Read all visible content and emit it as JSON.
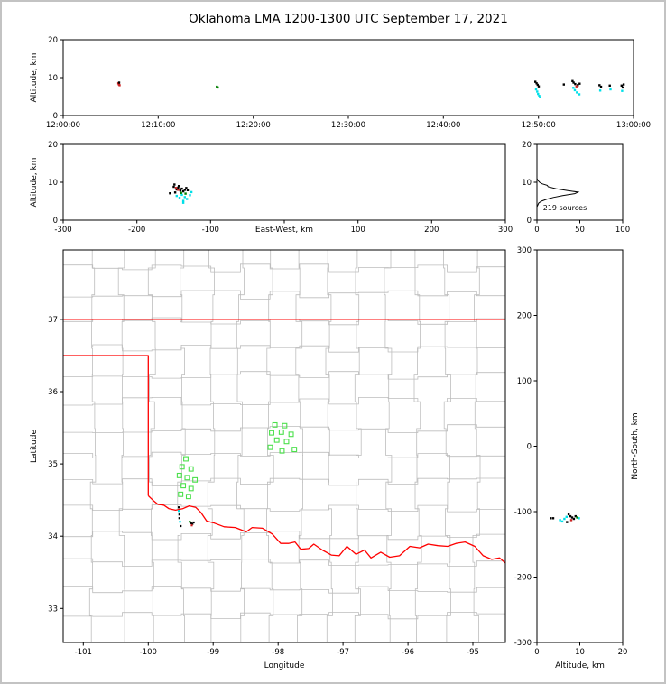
{
  "figure": {
    "title": "Oklahoma LMA 1200-1300 UTC September 17, 2021",
    "background": "#ffffff",
    "frame_color": "#c3c3c3"
  },
  "colors": {
    "axis": "#000000",
    "county_line": "#bdbdbd",
    "state_border": "#ff0000",
    "station_marker": "#4be04b",
    "k": "#000000",
    "c": "#00dfe8",
    "r": "#cc2222",
    "g": "#007f00"
  },
  "chart_data": [
    {
      "id": "time_height",
      "type": "scatter",
      "title": "",
      "xlabel": "",
      "ylabel": "Altitude, km",
      "xlim": [
        0,
        3600
      ],
      "ylim": [
        0,
        20
      ],
      "grid": false,
      "xticks": [
        {
          "v": 0,
          "label": "12:00:00"
        },
        {
          "v": 600,
          "label": "12:10:00"
        },
        {
          "v": 1200,
          "label": "12:20:00"
        },
        {
          "v": 1800,
          "label": "12:30:00"
        },
        {
          "v": 2400,
          "label": "12:40:00"
        },
        {
          "v": 3000,
          "label": "12:50:00"
        },
        {
          "v": 3600,
          "label": "13:00:00"
        }
      ],
      "yticks": [
        0,
        10,
        20
      ],
      "points": [
        [
          348,
          8.5,
          "r"
        ],
        [
          352,
          8.2,
          "r"
        ],
        [
          353,
          8.7,
          "k"
        ],
        [
          356,
          8.0,
          "r"
        ],
        [
          970,
          7.6,
          "g"
        ],
        [
          976,
          7.4,
          "g"
        ],
        [
          2980,
          8.9,
          "k"
        ],
        [
          2988,
          8.5,
          "k"
        ],
        [
          2995,
          8.1,
          "k"
        ],
        [
          3002,
          7.7,
          "k"
        ],
        [
          2985,
          6.9,
          "c"
        ],
        [
          2992,
          6.3,
          "c"
        ],
        [
          2998,
          5.7,
          "c"
        ],
        [
          3005,
          5.2,
          "c"
        ],
        [
          3010,
          4.8,
          "c"
        ],
        [
          3160,
          8.2,
          "k"
        ],
        [
          3215,
          9.1,
          "k"
        ],
        [
          3222,
          8.7,
          "k"
        ],
        [
          3232,
          8.3,
          "k"
        ],
        [
          3248,
          8.0,
          "k"
        ],
        [
          3260,
          8.4,
          "k"
        ],
        [
          3220,
          7.3,
          "c"
        ],
        [
          3230,
          6.7,
          "c"
        ],
        [
          3243,
          6.1,
          "c"
        ],
        [
          3258,
          5.6,
          "c"
        ],
        [
          3240,
          7.7,
          "r"
        ],
        [
          3385,
          8.0,
          "k"
        ],
        [
          3395,
          7.6,
          "k"
        ],
        [
          3390,
          6.6,
          "c"
        ],
        [
          3450,
          7.9,
          "k"
        ],
        [
          3455,
          6.9,
          "c"
        ],
        [
          3525,
          7.9,
          "k"
        ],
        [
          3532,
          7.4,
          "k"
        ],
        [
          3528,
          6.5,
          "c"
        ],
        [
          3538,
          8.2,
          "k"
        ]
      ]
    },
    {
      "id": "ew_height",
      "type": "scatter",
      "title": "",
      "xlabel": "East-West, km",
      "ylabel": "Altitude, km",
      "xlim": [
        -300,
        300
      ],
      "ylim": [
        0,
        20
      ],
      "grid": false,
      "xticks": [
        -300,
        -200,
        -100,
        0,
        100,
        200,
        300
      ],
      "yticks": [
        0,
        10,
        20
      ],
      "points": [
        [
          -155,
          7.1,
          "k"
        ],
        [
          -150,
          8.8,
          "k"
        ],
        [
          -149,
          9.4,
          "k"
        ],
        [
          -148,
          7.3,
          "k"
        ],
        [
          -146,
          8.1,
          "k"
        ],
        [
          -144,
          8.6,
          "k"
        ],
        [
          -143,
          9.0,
          "k"
        ],
        [
          -141,
          7.8,
          "k"
        ],
        [
          -139,
          8.3,
          "k"
        ],
        [
          -137,
          7.6,
          "k"
        ],
        [
          -135,
          8.0,
          "k"
        ],
        [
          -133,
          8.5,
          "k"
        ],
        [
          -131,
          7.9,
          "k"
        ],
        [
          -147,
          8.5,
          "r"
        ],
        [
          -144,
          8.0,
          "r"
        ],
        [
          -146,
          6.4,
          "c"
        ],
        [
          -142,
          5.9,
          "c"
        ],
        [
          -139,
          6.7,
          "c"
        ],
        [
          -137,
          5.1,
          "c"
        ],
        [
          -137,
          4.6,
          "c"
        ],
        [
          -135,
          6.1,
          "c"
        ],
        [
          -132,
          5.6,
          "c"
        ],
        [
          -128,
          6.6,
          "c"
        ],
        [
          -126,
          7.4,
          "c"
        ],
        [
          -134,
          7.0,
          "g"
        ],
        [
          -140,
          7.2,
          "g"
        ]
      ]
    },
    {
      "id": "alt_histogram",
      "type": "line",
      "title": "",
      "xlabel": "",
      "ylabel": "",
      "xlim": [
        0,
        100
      ],
      "ylim": [
        0,
        20
      ],
      "grid": false,
      "xticks": [
        0,
        50,
        100
      ],
      "yticks": [
        0,
        10,
        20
      ],
      "annotation": {
        "text": "219 sources",
        "x": 7,
        "y": 2.6
      },
      "profile": [
        [
          0,
          0
        ],
        [
          0,
          3.5
        ],
        [
          1,
          4
        ],
        [
          2,
          4.5
        ],
        [
          5,
          5
        ],
        [
          11,
          5.5
        ],
        [
          19,
          6
        ],
        [
          30,
          6.5
        ],
        [
          44,
          7
        ],
        [
          48,
          7.4
        ],
        [
          36,
          7.8
        ],
        [
          22,
          8.3
        ],
        [
          13,
          8.8
        ],
        [
          12,
          9.2
        ],
        [
          6,
          9.6
        ],
        [
          3,
          10
        ],
        [
          1,
          10.5
        ],
        [
          0,
          11
        ],
        [
          0,
          20
        ]
      ]
    },
    {
      "id": "map",
      "type": "scatter",
      "title": "",
      "xlabel": "Longitude",
      "ylabel": "Latitude",
      "xlim": [
        -101.31,
        -94.5
      ],
      "ylim": [
        32.53,
        37.96
      ],
      "grid": false,
      "xticks": [
        -101,
        -100,
        -99,
        -98,
        -97,
        -96,
        -95
      ],
      "yticks": [
        33,
        34,
        35,
        36,
        37
      ],
      "county_grid": {
        "lon_step": 0.455,
        "lat_step": 0.37,
        "jitter": 0.06
      },
      "state_border": [
        [
          [
            -101.31,
            37.0
          ],
          [
            -94.5,
            37.0
          ]
        ],
        [
          [
            -101.31,
            36.5
          ],
          [
            -100.0,
            36.5
          ],
          [
            -100.0,
            34.56
          ]
        ],
        [
          [
            -100.0,
            34.56
          ],
          [
            -99.93,
            34.5
          ],
          [
            -99.85,
            34.44
          ],
          [
            -99.76,
            34.43
          ],
          [
            -99.68,
            34.38
          ],
          [
            -99.58,
            34.36
          ],
          [
            -99.47,
            34.38
          ],
          [
            -99.37,
            34.42
          ],
          [
            -99.27,
            34.4
          ],
          [
            -99.19,
            34.33
          ],
          [
            -99.1,
            34.21
          ],
          [
            -98.98,
            34.18
          ],
          [
            -98.83,
            34.13
          ],
          [
            -98.66,
            34.12
          ],
          [
            -98.49,
            34.06
          ],
          [
            -98.4,
            34.12
          ],
          [
            -98.24,
            34.11
          ],
          [
            -98.09,
            34.03
          ],
          [
            -97.96,
            33.9
          ],
          [
            -97.84,
            33.9
          ],
          [
            -97.74,
            33.92
          ],
          [
            -97.65,
            33.82
          ],
          [
            -97.53,
            33.83
          ],
          [
            -97.45,
            33.89
          ],
          [
            -97.32,
            33.81
          ],
          [
            -97.18,
            33.74
          ],
          [
            -97.06,
            33.73
          ],
          [
            -96.94,
            33.86
          ],
          [
            -96.8,
            33.75
          ],
          [
            -96.67,
            33.81
          ],
          [
            -96.57,
            33.7
          ],
          [
            -96.42,
            33.78
          ],
          [
            -96.28,
            33.71
          ],
          [
            -96.13,
            33.73
          ],
          [
            -95.97,
            33.86
          ],
          [
            -95.82,
            33.84
          ],
          [
            -95.69,
            33.89
          ],
          [
            -95.54,
            33.87
          ],
          [
            -95.39,
            33.86
          ],
          [
            -95.26,
            33.9
          ],
          [
            -95.12,
            33.92
          ],
          [
            -94.97,
            33.86
          ],
          [
            -94.84,
            33.73
          ],
          [
            -94.71,
            33.68
          ],
          [
            -94.59,
            33.7
          ],
          [
            -94.5,
            33.63
          ]
        ]
      ],
      "stations": [
        [
          -98.05,
          35.54
        ],
        [
          -97.9,
          35.53
        ],
        [
          -98.1,
          35.43
        ],
        [
          -97.95,
          35.44
        ],
        [
          -97.8,
          35.41
        ],
        [
          -98.02,
          35.33
        ],
        [
          -97.87,
          35.31
        ],
        [
          -98.12,
          35.23
        ],
        [
          -97.75,
          35.2
        ],
        [
          -97.94,
          35.18
        ],
        [
          -99.42,
          35.07
        ],
        [
          -99.48,
          34.96
        ],
        [
          -99.34,
          34.93
        ],
        [
          -99.52,
          34.84
        ],
        [
          -99.4,
          34.81
        ],
        [
          -99.28,
          34.78
        ],
        [
          -99.46,
          34.7
        ],
        [
          -99.34,
          34.66
        ],
        [
          -99.5,
          34.58
        ],
        [
          -99.38,
          34.55
        ]
      ],
      "sources": [
        [
          -99.53,
          34.4,
          "k"
        ],
        [
          -99.53,
          34.35,
          "c"
        ],
        [
          -99.52,
          34.3,
          "k"
        ],
        [
          -99.52,
          34.25,
          "k"
        ],
        [
          -99.51,
          34.2,
          "c"
        ],
        [
          -99.5,
          34.14,
          "k"
        ],
        [
          -99.36,
          34.2,
          "g"
        ],
        [
          -99.34,
          34.18,
          "k"
        ],
        [
          -99.32,
          34.17,
          "k"
        ],
        [
          -99.33,
          34.15,
          "r"
        ],
        [
          -99.3,
          34.19,
          "k"
        ]
      ]
    },
    {
      "id": "ns_height",
      "type": "scatter",
      "title": "",
      "xlabel": "Altitude, km",
      "ylabel": "North-South, km",
      "xlim": [
        0,
        20
      ],
      "ylim": [
        -300,
        300
      ],
      "grid": false,
      "xticks": [
        0,
        10,
        20
      ],
      "yticks": [
        300,
        200,
        100,
        0,
        -100,
        -200,
        -300
      ],
      "points": [
        [
          3.2,
          -110,
          "k"
        ],
        [
          3.8,
          -110,
          "k"
        ],
        [
          5.4,
          -113,
          "c"
        ],
        [
          5.9,
          -115,
          "c"
        ],
        [
          6.4,
          -111,
          "c"
        ],
        [
          6.9,
          -108,
          "c"
        ],
        [
          7.4,
          -104,
          "k"
        ],
        [
          7.8,
          -107,
          "k"
        ],
        [
          8.2,
          -109,
          "k"
        ],
        [
          8.6,
          -111,
          "k"
        ],
        [
          9.0,
          -107,
          "k"
        ],
        [
          9.4,
          -109,
          "g"
        ],
        [
          8.0,
          -113,
          "r"
        ],
        [
          7.0,
          -116,
          "k"
        ],
        [
          9.8,
          -110,
          "c"
        ]
      ]
    }
  ]
}
